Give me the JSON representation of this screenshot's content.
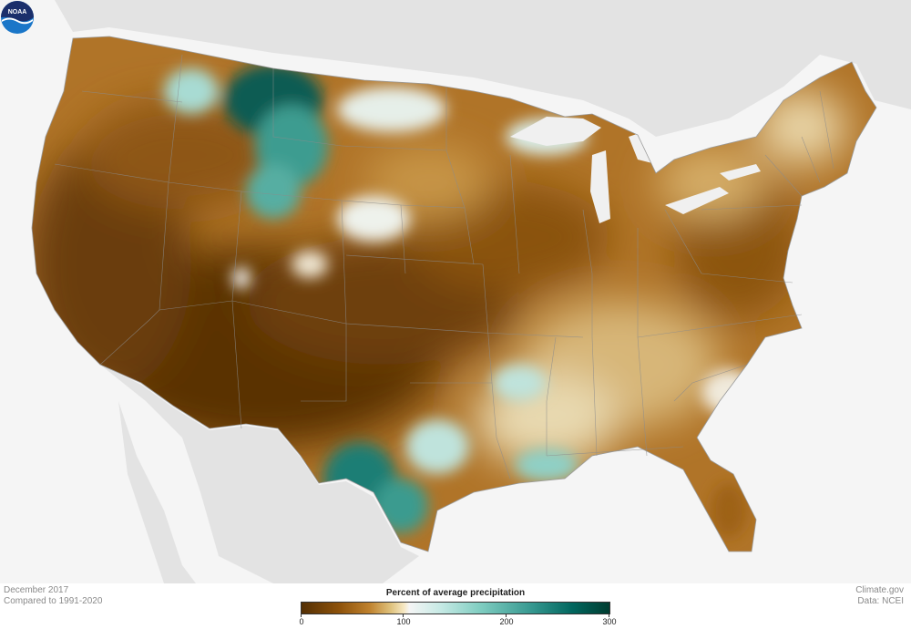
{
  "footer": {
    "period": "December 2017",
    "baseline": "Compared to 1991-2020",
    "credit_site": "Climate.gov",
    "credit_data": "Data: NCEI"
  },
  "legend": {
    "title": "Percent of average precipitation",
    "ticks": [
      "0",
      "100",
      "200",
      "300"
    ],
    "min": 0,
    "max": 300
  },
  "logo": {
    "text": "NOAA"
  },
  "colors": {
    "very_dry": "#543005",
    "dry": "#bf812d",
    "near_normal": "#f5f5f5",
    "wet": "#80cdc1",
    "very_wet": "#003c30",
    "background": "#f4f4f4"
  }
}
